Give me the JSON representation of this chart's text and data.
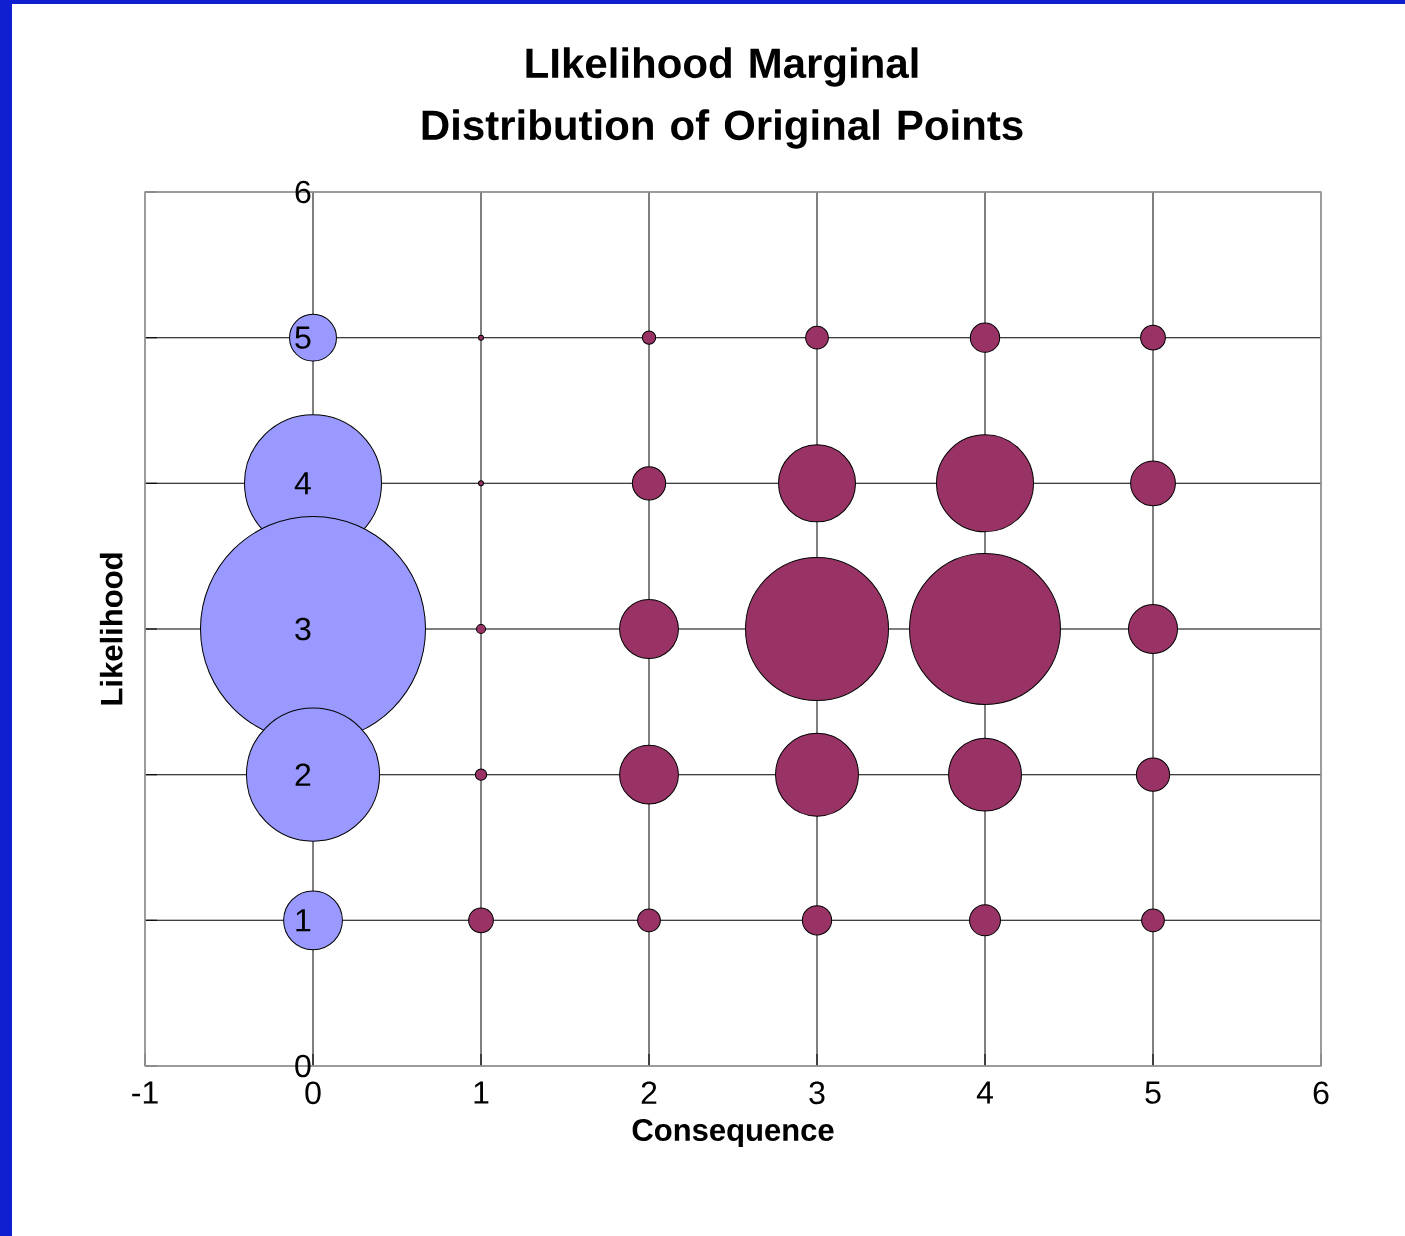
{
  "chart_data": {
    "type": "bubble",
    "title": "LIkelihood Marginal Distribution of Original Points",
    "xlabel": "Consequence",
    "ylabel": "Likelihood",
    "xlim": [
      -1,
      6
    ],
    "ylim": [
      0,
      6
    ],
    "xticks": [
      -1,
      0,
      1,
      2,
      3,
      4,
      5,
      6
    ],
    "yticks": [
      0,
      1,
      2,
      3,
      4,
      5,
      6
    ],
    "grid": true,
    "series": [
      {
        "color": "#9999ff",
        "x": [
          0,
          0,
          0,
          0,
          0
        ],
        "values": [
          5,
          4,
          3,
          2,
          1
        ],
        "sizes": [
          0.045,
          0.373,
          1,
          0.352,
          0.07
        ]
      },
      {
        "color": "#993366",
        "x": [
          1,
          1,
          1,
          1,
          1,
          2,
          2,
          2,
          2,
          2,
          3,
          3,
          3,
          3,
          3,
          4,
          4,
          4,
          4,
          4,
          5,
          5,
          5,
          5,
          5
        ],
        "values": [
          5,
          4,
          3,
          2,
          1,
          5,
          4,
          3,
          2,
          1,
          5,
          4,
          3,
          2,
          1,
          5,
          4,
          3,
          2,
          1,
          5,
          4,
          3,
          2,
          1
        ],
        "sizes": [
          0.0007,
          0.0007,
          0.002,
          0.003,
          0.013,
          0.004,
          0.023,
          0.07,
          0.07,
          0.011,
          0.011,
          0.119,
          0.406,
          0.138,
          0.018,
          0.018,
          0.188,
          0.452,
          0.107,
          0.02,
          0.013,
          0.041,
          0.049,
          0.023,
          0.011
        ]
      }
    ]
  }
}
